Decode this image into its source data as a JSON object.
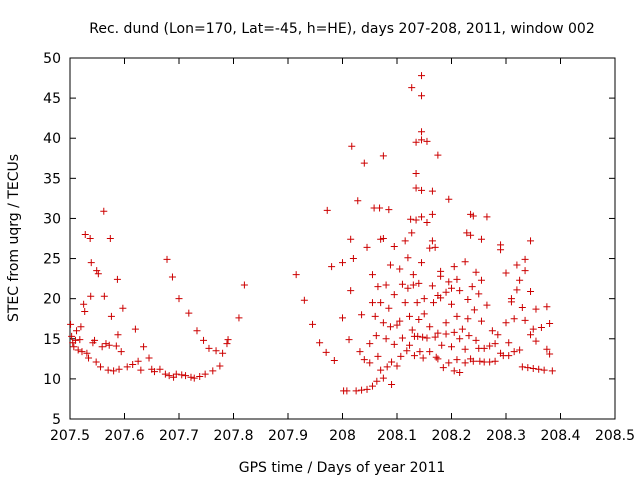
{
  "chart_data": {
    "type": "scatter",
    "title": "Rec. dund (Lon=170, Lat=-45, h=HE), days 207-208, 2011, window 002",
    "xlabel": "GPS time / Days of year 2011",
    "ylabel": "STEC from uqrg / TECUs",
    "xlim": [
      207.5,
      208.5
    ],
    "ylim": [
      5,
      50
    ],
    "xticks": [
      207.5,
      207.6,
      207.7,
      207.8,
      207.9,
      208,
      208.1,
      208.2,
      208.3,
      208.4,
      208.5
    ],
    "xtick_labels": [
      "207.5",
      "207.6",
      "207.7",
      "207.8",
      "207.9",
      "208",
      "208.1",
      "208.2",
      "208.3",
      "208.4",
      "208.5"
    ],
    "yticks": [
      5,
      10,
      15,
      20,
      25,
      30,
      35,
      40,
      45,
      50
    ],
    "ytick_labels": [
      "5",
      "10",
      "15",
      "20",
      "25",
      "30",
      "35",
      "40",
      "45",
      "50"
    ],
    "marker": "+",
    "color": "#cc0000",
    "series": [
      {
        "name": "STEC",
        "points": [
          [
            207.501,
            16.8
          ],
          [
            207.503,
            15.3
          ],
          [
            207.505,
            14.5
          ],
          [
            207.507,
            14.0
          ],
          [
            207.51,
            14.8
          ],
          [
            207.512,
            16.0
          ],
          [
            207.515,
            13.6
          ],
          [
            207.518,
            14.9
          ],
          [
            207.52,
            16.5
          ],
          [
            207.522,
            13.4
          ],
          [
            207.525,
            19.3
          ],
          [
            207.527,
            18.4
          ],
          [
            207.528,
            28.0
          ],
          [
            207.531,
            13.2
          ],
          [
            207.534,
            12.6
          ],
          [
            207.537,
            27.5
          ],
          [
            207.538,
            20.3
          ],
          [
            207.539,
            24.5
          ],
          [
            207.542,
            14.5
          ],
          [
            207.545,
            14.8
          ],
          [
            207.548,
            12.1
          ],
          [
            207.549,
            23.5
          ],
          [
            207.552,
            23.1
          ],
          [
            207.556,
            11.5
          ],
          [
            207.559,
            14.0
          ],
          [
            207.562,
            30.9
          ],
          [
            207.563,
            20.3
          ],
          [
            207.566,
            14.4
          ],
          [
            207.57,
            11.1
          ],
          [
            207.572,
            14.2
          ],
          [
            207.574,
            27.5
          ],
          [
            207.576,
            17.8
          ],
          [
            207.58,
            11.0
          ],
          [
            207.585,
            14.1
          ],
          [
            207.587,
            22.4
          ],
          [
            207.588,
            15.5
          ],
          [
            207.59,
            11.2
          ],
          [
            207.594,
            13.4
          ],
          [
            207.597,
            18.8
          ],
          [
            207.605,
            11.5
          ],
          [
            207.615,
            11.8
          ],
          [
            207.62,
            16.2
          ],
          [
            207.625,
            12.2
          ],
          [
            207.63,
            11.1
          ],
          [
            207.635,
            14.0
          ],
          [
            207.645,
            12.6
          ],
          [
            207.65,
            11.2
          ],
          [
            207.655,
            10.9
          ],
          [
            207.665,
            11.2
          ],
          [
            207.675,
            10.6
          ],
          [
            207.678,
            24.9
          ],
          [
            207.682,
            10.4
          ],
          [
            207.688,
            22.7
          ],
          [
            207.69,
            10.2
          ],
          [
            207.695,
            10.6
          ],
          [
            207.7,
            20.0
          ],
          [
            207.705,
            10.5
          ],
          [
            207.712,
            10.4
          ],
          [
            207.718,
            18.2
          ],
          [
            207.722,
            10.2
          ],
          [
            207.728,
            10.1
          ],
          [
            207.733,
            16.0
          ],
          [
            207.738,
            10.3
          ],
          [
            207.745,
            14.8
          ],
          [
            207.748,
            10.6
          ],
          [
            207.755,
            13.8
          ],
          [
            207.762,
            11.0
          ],
          [
            207.768,
            13.5
          ],
          [
            207.775,
            11.6
          ],
          [
            207.78,
            13.2
          ],
          [
            207.788,
            14.4
          ],
          [
            207.79,
            14.9
          ],
          [
            207.81,
            17.6
          ],
          [
            207.82,
            21.7
          ],
          [
            207.915,
            23.0
          ],
          [
            207.93,
            19.8
          ],
          [
            207.945,
            16.8
          ],
          [
            207.958,
            14.5
          ],
          [
            207.97,
            13.3
          ],
          [
            207.972,
            31.0
          ],
          [
            207.98,
            24.0
          ],
          [
            207.985,
            12.3
          ],
          [
            208.0,
            24.5
          ],
          [
            208.0,
            17.6
          ],
          [
            208.002,
            8.5
          ],
          [
            208.008,
            8.5
          ],
          [
            208.012,
            14.9
          ],
          [
            208.015,
            27.4
          ],
          [
            208.015,
            21.0
          ],
          [
            208.017,
            39.0
          ],
          [
            208.02,
            25.0
          ],
          [
            208.025,
            8.5
          ],
          [
            208.028,
            32.2
          ],
          [
            208.032,
            13.4
          ],
          [
            208.035,
            18.0
          ],
          [
            208.035,
            8.6
          ],
          [
            208.04,
            36.9
          ],
          [
            208.04,
            12.4
          ],
          [
            208.045,
            26.4
          ],
          [
            208.045,
            8.7
          ],
          [
            208.05,
            14.4
          ],
          [
            208.05,
            12.0
          ],
          [
            208.055,
            23.0
          ],
          [
            208.055,
            19.5
          ],
          [
            208.055,
            9.1
          ],
          [
            208.058,
            31.3
          ],
          [
            208.06,
            17.8
          ],
          [
            208.062,
            15.4
          ],
          [
            208.063,
            9.7
          ],
          [
            208.065,
            21.5
          ],
          [
            208.065,
            12.8
          ],
          [
            208.068,
            31.3
          ],
          [
            208.07,
            27.4
          ],
          [
            208.07,
            19.5
          ],
          [
            208.07,
            11.1
          ],
          [
            208.075,
            37.8
          ],
          [
            208.075,
            27.5
          ],
          [
            208.075,
            17.0
          ],
          [
            208.075,
            10.1
          ],
          [
            208.08,
            21.7
          ],
          [
            208.08,
            15.0
          ],
          [
            208.082,
            11.5
          ],
          [
            208.085,
            31.1
          ],
          [
            208.085,
            18.8
          ],
          [
            208.088,
            24.2
          ],
          [
            208.088,
            16.5
          ],
          [
            208.09,
            12.1
          ],
          [
            208.09,
            9.3
          ],
          [
            208.095,
            26.5
          ],
          [
            208.095,
            20.5
          ],
          [
            208.095,
            14.3
          ],
          [
            208.1,
            16.7
          ],
          [
            208.1,
            11.6
          ],
          [
            208.105,
            23.7
          ],
          [
            208.105,
            17.2
          ],
          [
            208.107,
            12.8
          ],
          [
            208.11,
            21.8
          ],
          [
            208.11,
            15.1
          ],
          [
            208.115,
            27.2
          ],
          [
            208.115,
            19.5
          ],
          [
            208.118,
            13.5
          ],
          [
            208.12,
            25.1
          ],
          [
            208.12,
            21.3
          ],
          [
            208.123,
            17.8
          ],
          [
            208.123,
            14.2
          ],
          [
            208.125,
            29.9
          ],
          [
            208.127,
            28.2
          ],
          [
            208.127,
            46.3
          ],
          [
            208.128,
            16.1
          ],
          [
            208.13,
            23.0
          ],
          [
            208.13,
            21.7
          ],
          [
            208.132,
            15.3
          ],
          [
            208.132,
            12.9
          ],
          [
            208.135,
            33.8
          ],
          [
            208.135,
            29.8
          ],
          [
            208.135,
            35.6
          ],
          [
            208.135,
            39.5
          ],
          [
            208.137,
            19.5
          ],
          [
            208.138,
            15.3
          ],
          [
            208.14,
            21.9
          ],
          [
            208.14,
            17.4
          ],
          [
            208.142,
            13.4
          ],
          [
            208.145,
            40.8
          ],
          [
            208.145,
            45.3
          ],
          [
            208.145,
            47.8
          ],
          [
            208.145,
            39.8
          ],
          [
            208.145,
            33.5
          ],
          [
            208.145,
            30.2
          ],
          [
            208.145,
            24.5
          ],
          [
            208.147,
            15.2
          ],
          [
            208.148,
            12.6
          ],
          [
            208.15,
            20.0
          ],
          [
            208.15,
            18.1
          ],
          [
            208.155,
            39.6
          ],
          [
            208.155,
            29.5
          ],
          [
            208.155,
            15.1
          ],
          [
            208.16,
            26.3
          ],
          [
            208.16,
            16.5
          ],
          [
            208.16,
            13.4
          ],
          [
            208.165,
            33.4
          ],
          [
            208.165,
            30.5
          ],
          [
            208.165,
            27.2
          ],
          [
            208.165,
            21.6
          ],
          [
            208.167,
            19.5
          ],
          [
            208.17,
            26.4
          ],
          [
            208.17,
            15.2
          ],
          [
            208.172,
            12.7
          ],
          [
            208.175,
            37.9
          ],
          [
            208.175,
            20.4
          ],
          [
            208.175,
            15.7
          ],
          [
            208.175,
            12.5
          ],
          [
            208.18,
            23.4
          ],
          [
            208.18,
            22.8
          ],
          [
            208.18,
            20.1
          ],
          [
            208.182,
            14.2
          ],
          [
            208.185,
            11.4
          ],
          [
            208.19,
            20.8
          ],
          [
            208.19,
            17.0
          ],
          [
            208.19,
            15.6
          ],
          [
            208.195,
            32.4
          ],
          [
            208.195,
            22.1
          ],
          [
            208.195,
            12.0
          ],
          [
            208.2,
            21.3
          ],
          [
            208.2,
            19.3
          ],
          [
            208.2,
            14.0
          ],
          [
            208.205,
            24.0
          ],
          [
            208.205,
            15.8
          ],
          [
            208.205,
            11.0
          ],
          [
            208.21,
            22.4
          ],
          [
            208.21,
            17.8
          ],
          [
            208.21,
            12.4
          ],
          [
            208.215,
            21.0
          ],
          [
            208.215,
            15.0
          ],
          [
            208.215,
            10.8
          ],
          [
            208.22,
            16.2
          ],
          [
            208.225,
            24.6
          ],
          [
            208.225,
            13.7
          ],
          [
            208.225,
            12.0
          ],
          [
            208.228,
            28.2
          ],
          [
            208.23,
            19.9
          ],
          [
            208.23,
            17.5
          ],
          [
            208.232,
            15.4
          ],
          [
            208.235,
            30.5
          ],
          [
            208.235,
            27.9
          ],
          [
            208.235,
            12.5
          ],
          [
            208.238,
            21.5
          ],
          [
            208.24,
            30.3
          ],
          [
            208.24,
            12.2
          ],
          [
            208.242,
            18.6
          ],
          [
            208.245,
            23.3
          ],
          [
            208.245,
            14.8
          ],
          [
            208.25,
            20.6
          ],
          [
            208.25,
            13.8
          ],
          [
            208.252,
            12.2
          ],
          [
            208.255,
            27.4
          ],
          [
            208.255,
            22.3
          ],
          [
            208.255,
            17.2
          ],
          [
            208.26,
            13.8
          ],
          [
            208.26,
            12.1
          ],
          [
            208.265,
            30.2
          ],
          [
            208.265,
            19.2
          ],
          [
            208.27,
            14.1
          ],
          [
            208.27,
            12.1
          ],
          [
            208.275,
            16.0
          ],
          [
            208.28,
            14.4
          ],
          [
            208.28,
            12.2
          ],
          [
            208.285,
            15.5
          ],
          [
            208.29,
            26.7
          ],
          [
            208.29,
            26.1
          ],
          [
            208.29,
            13.2
          ],
          [
            208.295,
            12.9
          ],
          [
            208.3,
            23.2
          ],
          [
            208.3,
            17.0
          ],
          [
            208.305,
            14.5
          ],
          [
            208.305,
            12.9
          ],
          [
            208.31,
            20.0
          ],
          [
            208.31,
            19.6
          ],
          [
            208.315,
            17.5
          ],
          [
            208.315,
            13.4
          ],
          [
            208.32,
            24.2
          ],
          [
            208.32,
            21.1
          ],
          [
            208.325,
            22.3
          ],
          [
            208.325,
            13.6
          ],
          [
            208.33,
            18.9
          ],
          [
            208.33,
            11.5
          ],
          [
            208.335,
            24.9
          ],
          [
            208.335,
            23.5
          ],
          [
            208.335,
            17.3
          ],
          [
            208.34,
            11.4
          ],
          [
            208.345,
            27.2
          ],
          [
            208.345,
            20.9
          ],
          [
            208.345,
            15.5
          ],
          [
            208.35,
            16.2
          ],
          [
            208.35,
            11.3
          ],
          [
            208.355,
            18.7
          ],
          [
            208.355,
            14.7
          ],
          [
            208.36,
            11.2
          ],
          [
            208.365,
            16.4
          ],
          [
            208.37,
            11.1
          ],
          [
            208.375,
            19.0
          ],
          [
            208.375,
            13.7
          ],
          [
            208.38,
            16.9
          ],
          [
            208.38,
            13.1
          ],
          [
            208.385,
            11.0
          ]
        ]
      }
    ]
  }
}
